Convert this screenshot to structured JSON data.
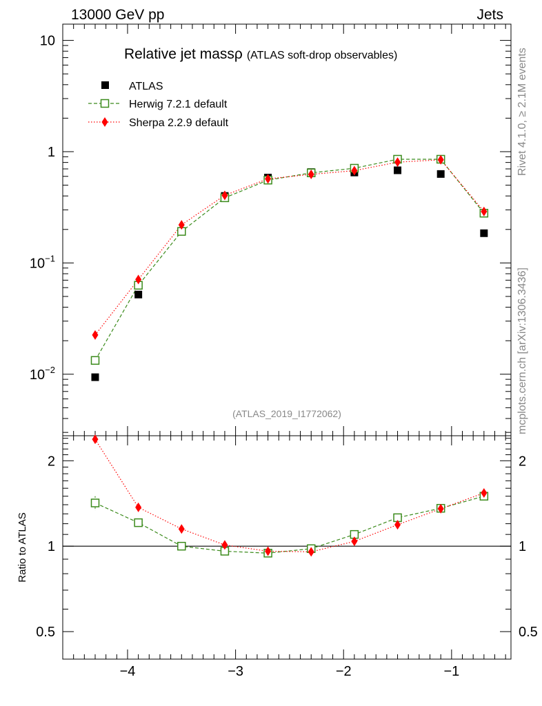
{
  "header": {
    "energy_label": "13000 GeV pp",
    "process_label": "Jets"
  },
  "side": {
    "rivet_label": "Rivet 4.1.0, ≥ 2.1M events",
    "source_label": "mcplots.cern.ch [arXiv:1306.3436]"
  },
  "chart_data": {
    "type": "scatter",
    "title_main": "Relative jet massρ",
    "title_sub": "(ATLAS soft-drop observables)",
    "analysis_id": "(ATLAS_2019_I1772062)",
    "x": [
      -4.3,
      -3.9,
      -3.5,
      -3.1,
      -2.7,
      -2.3,
      -1.9,
      -1.5,
      -1.1,
      -0.7
    ],
    "xlim": [
      -4.6,
      -0.45
    ],
    "xticks": [
      -4,
      -3,
      -2,
      -1
    ],
    "xtick_labels": [
      "−4",
      "−3",
      "−2",
      "−1"
    ],
    "main_panel": {
      "yscale": "log",
      "ylim": [
        0.0028,
        14
      ],
      "yticks": [
        {
          "value": 10,
          "label": "10"
        },
        {
          "value": 1,
          "label": "1"
        },
        {
          "value": 0.1,
          "label": "10",
          "exp": "−1"
        },
        {
          "value": 0.01,
          "label": "10",
          "exp": "−2"
        }
      ],
      "series": [
        {
          "name": "ATLAS",
          "color": "#000000",
          "marker": "square",
          "values": [
            0.0094,
            0.052,
            0.192,
            0.4,
            0.585,
            0.655,
            0.65,
            0.68,
            0.63,
            0.185
          ]
        },
        {
          "name": "Herwig 7.2.1 default",
          "color": "#3a8a1a",
          "marker": "open-square",
          "line": "dashed",
          "values": [
            0.0133,
            0.063,
            0.192,
            0.385,
            0.555,
            0.645,
            0.71,
            0.855,
            0.855,
            0.28
          ]
        },
        {
          "name": "Sherpa 2.2.9 default",
          "color": "#ff0000",
          "marker": "diamond",
          "line": "dotted",
          "values": [
            0.0225,
            0.071,
            0.22,
            0.405,
            0.57,
            0.625,
            0.675,
            0.805,
            0.845,
            0.29
          ]
        }
      ]
    },
    "ratio_panel": {
      "ylabel": "Ratio to ATLAS",
      "yscale": "log",
      "ylim": [
        0.4,
        2.45
      ],
      "yticks": [
        {
          "value": 2,
          "label": "2"
        },
        {
          "value": 1,
          "label": "1"
        },
        {
          "value": 0.5,
          "label": "0.5"
        }
      ],
      "reference": 1,
      "series": [
        {
          "name": "Herwig 7.2.1 default",
          "values": [
            1.42,
            1.21,
            1.0,
            0.96,
            0.945,
            0.98,
            1.1,
            1.26,
            1.36,
            1.5
          ],
          "errors": [
            0.08,
            0.025,
            0,
            0,
            0,
            0,
            0,
            0,
            0,
            0
          ]
        },
        {
          "name": "Sherpa 2.2.9 default",
          "values": [
            2.38,
            1.37,
            1.15,
            1.01,
            0.96,
            0.955,
            1.04,
            1.19,
            1.355,
            1.54
          ],
          "errors": [
            0.05,
            0.03,
            0,
            0,
            0,
            0,
            0,
            0,
            0,
            0
          ]
        }
      ]
    }
  }
}
